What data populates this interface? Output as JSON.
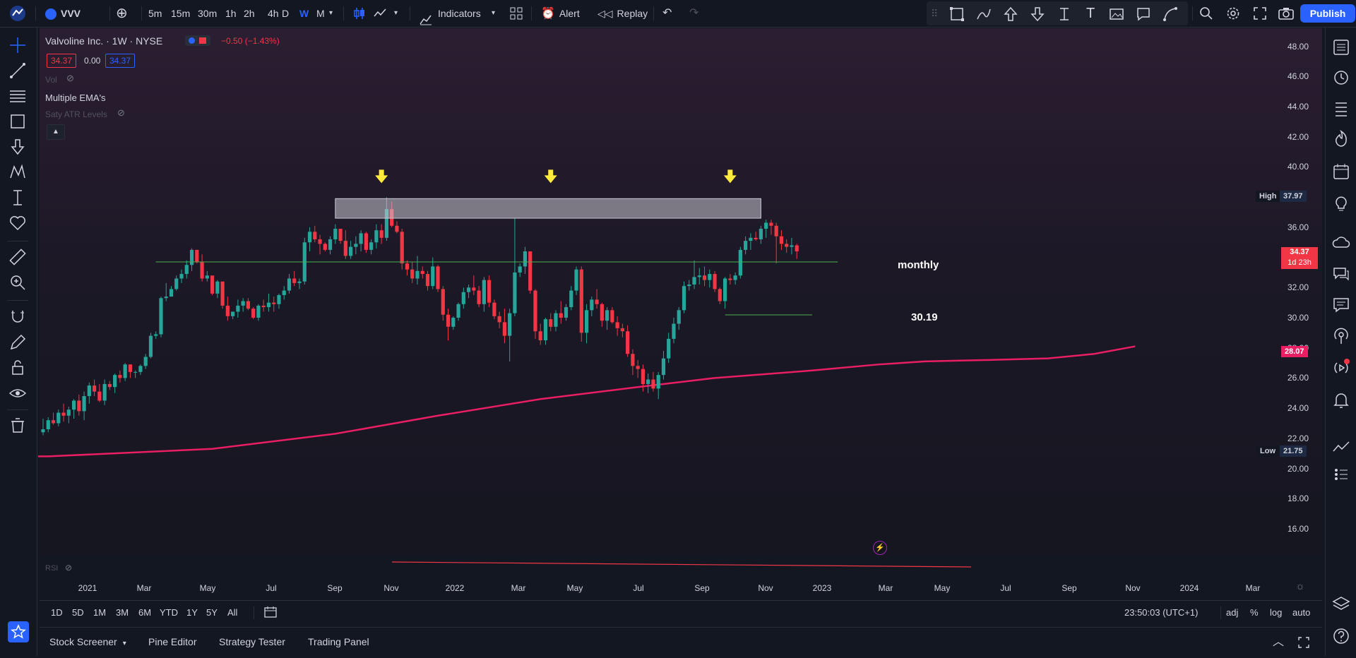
{
  "topbar": {
    "symbol": "VVV",
    "intervals": [
      "5m",
      "15m",
      "30m",
      "1h",
      "2h",
      "4h",
      "D",
      "W",
      "M"
    ],
    "active_interval": "W",
    "indicators_label": "Indicators",
    "alert_label": "Alert",
    "replay_label": "Replay",
    "publish_label": "Publish"
  },
  "legend": {
    "title": "Valvoline Inc. · 1W · NYSE",
    "change": "−0.50 (−1.43%)",
    "bid": "34.37",
    "spread": "0.00",
    "ask": "34.37",
    "vol_label": "Vol",
    "ema_label": "Multiple EMA's",
    "atr_label": "Saty ATR Levels",
    "rsi_label": "RSI"
  },
  "annotations": {
    "monthly_label": "monthly",
    "level_label": "30.19"
  },
  "price_axis": {
    "ticks": [
      "48.00",
      "46.00",
      "44.00",
      "42.00",
      "40.00",
      "36.00",
      "34.00",
      "32.00",
      "30.00",
      "28.00",
      "26.00",
      "24.00",
      "22.00",
      "20.00",
      "18.00",
      "16.00"
    ],
    "high_label": "High",
    "high_value": "37.97",
    "low_label": "Low",
    "low_value": "21.75",
    "last_price": "34.37",
    "countdown": "1d 23h",
    "ema_value": "28.07"
  },
  "time_axis": {
    "labels": [
      "2021",
      "Mar",
      "May",
      "Jul",
      "Sep",
      "Nov",
      "2022",
      "Mar",
      "May",
      "Jul",
      "Sep",
      "Nov",
      "2023",
      "Mar",
      "May",
      "Jul",
      "Sep",
      "Nov",
      "2024",
      "Mar"
    ]
  },
  "range_bar": {
    "ranges": [
      "1D",
      "5D",
      "1M",
      "3M",
      "6M",
      "YTD",
      "1Y",
      "5Y",
      "All"
    ],
    "clock": "23:50:03 (UTC+1)",
    "adj": "adj",
    "pct": "%",
    "log": "log",
    "auto": "auto"
  },
  "bottom_panel": {
    "tabs": [
      "Stock Screener",
      "Pine Editor",
      "Strategy Tester",
      "Trading Panel"
    ]
  },
  "colors": {
    "up": "#26a69a",
    "down": "#f23645",
    "ema": "#e91e63",
    "accent": "#2962ff",
    "arrow": "#ffeb3b",
    "hline": "#4caf50"
  },
  "chart_data": {
    "type": "candlestick",
    "xlabels": [
      "2021",
      "Mar",
      "May",
      "Jul",
      "Sep",
      "Nov",
      "2022",
      "Mar",
      "May",
      "Jul",
      "Sep",
      "Nov",
      "2023",
      "Mar",
      "May",
      "Jul",
      "Sep",
      "Nov",
      "2024",
      "Mar"
    ],
    "ylim": [
      15.2,
      48.5
    ],
    "log_scale": false,
    "ohlc": [
      [
        22.4,
        23.3,
        22.2,
        22.6
      ],
      [
        22.6,
        23.4,
        22.4,
        23.2
      ],
      [
        23.2,
        23.7,
        22.9,
        23.0
      ],
      [
        23.0,
        23.9,
        22.8,
        23.7
      ],
      [
        23.7,
        24.3,
        23.1,
        23.5
      ],
      [
        23.5,
        24.1,
        23.0,
        23.9
      ],
      [
        23.9,
        24.6,
        23.3,
        24.5
      ],
      [
        24.5,
        24.9,
        23.5,
        23.8
      ],
      [
        23.8,
        25.1,
        23.2,
        24.8
      ],
      [
        24.8,
        25.7,
        24.3,
        25.5
      ],
      [
        25.5,
        25.9,
        24.8,
        25.1
      ],
      [
        25.1,
        25.6,
        24.4,
        24.5
      ],
      [
        24.5,
        25.9,
        24.2,
        25.6
      ],
      [
        25.6,
        25.8,
        25.2,
        25.4
      ],
      [
        25.4,
        26.3,
        25.0,
        26.2
      ],
      [
        26.2,
        26.5,
        25.7,
        26.0
      ],
      [
        26.0,
        27.0,
        25.8,
        26.9
      ],
      [
        26.9,
        26.9,
        26.0,
        26.4
      ],
      [
        26.4,
        26.5,
        26.0,
        26.4
      ],
      [
        26.4,
        26.9,
        26.2,
        26.8
      ],
      [
        26.8,
        27.6,
        26.6,
        27.4
      ],
      [
        27.4,
        29.0,
        27.3,
        28.8
      ],
      [
        28.8,
        29.1,
        28.6,
        28.9
      ],
      [
        28.9,
        31.4,
        28.7,
        31.3
      ],
      [
        31.3,
        32.3,
        31.1,
        31.4
      ],
      [
        31.4,
        32.1,
        31.4,
        31.9
      ],
      [
        31.9,
        32.8,
        31.8,
        32.6
      ],
      [
        32.6,
        33.2,
        32.3,
        32.9
      ],
      [
        32.9,
        33.8,
        32.6,
        33.5
      ],
      [
        33.5,
        34.6,
        33.1,
        34.5
      ],
      [
        34.5,
        34.5,
        33.6,
        33.7
      ],
      [
        33.7,
        34.2,
        32.4,
        32.6
      ],
      [
        32.6,
        33.1,
        32.4,
        32.8
      ],
      [
        32.8,
        32.8,
        31.5,
        31.6
      ],
      [
        31.6,
        32.5,
        31.3,
        32.4
      ],
      [
        32.4,
        32.4,
        30.6,
        30.8
      ],
      [
        30.8,
        31.4,
        29.8,
        30.1
      ],
      [
        30.1,
        30.4,
        29.9,
        30.4
      ],
      [
        30.4,
        31.2,
        30.0,
        30.8
      ],
      [
        30.8,
        31.3,
        30.4,
        31.1
      ],
      [
        31.1,
        31.3,
        30.5,
        30.6
      ],
      [
        30.6,
        30.7,
        29.9,
        30.0
      ],
      [
        30.0,
        30.9,
        29.8,
        30.8
      ],
      [
        30.8,
        31.2,
        30.4,
        30.7
      ],
      [
        30.7,
        31.6,
        30.4,
        31.0
      ],
      [
        31.0,
        31.4,
        30.4,
        30.9
      ],
      [
        30.9,
        31.6,
        30.6,
        31.5
      ],
      [
        31.5,
        32.1,
        31.2,
        31.8
      ],
      [
        31.8,
        32.9,
        31.6,
        32.6
      ],
      [
        32.6,
        33.1,
        32.1,
        32.3
      ],
      [
        32.3,
        32.6,
        31.9,
        32.4
      ],
      [
        32.4,
        35.3,
        32.2,
        35.0
      ],
      [
        35.0,
        36.0,
        34.4,
        35.7
      ],
      [
        35.7,
        36.1,
        35.0,
        35.2
      ],
      [
        35.2,
        35.5,
        34.2,
        34.9
      ],
      [
        34.9,
        35.0,
        34.4,
        34.5
      ],
      [
        34.5,
        35.4,
        34.2,
        35.2
      ],
      [
        35.2,
        36.2,
        34.9,
        35.9
      ],
      [
        35.9,
        35.9,
        34.9,
        35.1
      ],
      [
        35.1,
        35.8,
        33.9,
        34.1
      ],
      [
        34.1,
        35.1,
        33.9,
        34.7
      ],
      [
        34.7,
        35.4,
        34.2,
        34.9
      ],
      [
        34.9,
        35.8,
        34.4,
        35.6
      ],
      [
        35.6,
        35.7,
        34.3,
        34.5
      ],
      [
        34.5,
        35.2,
        34.2,
        35.0
      ],
      [
        35.0,
        36.2,
        34.6,
        35.8
      ],
      [
        35.8,
        36.2,
        34.9,
        35.3
      ],
      [
        35.3,
        38.0,
        35.1,
        37.2
      ],
      [
        37.2,
        37.7,
        36.0,
        36.1
      ],
      [
        36.1,
        36.4,
        35.6,
        35.7
      ],
      [
        35.7,
        35.9,
        33.2,
        33.6
      ],
      [
        33.6,
        33.8,
        32.8,
        33.2
      ],
      [
        33.2,
        33.7,
        32.3,
        32.6
      ],
      [
        32.6,
        34.1,
        32.2,
        33.1
      ],
      [
        33.1,
        33.4,
        32.6,
        32.9
      ],
      [
        32.9,
        33.1,
        31.8,
        32.1
      ],
      [
        32.1,
        34.0,
        31.9,
        33.4
      ],
      [
        33.4,
        33.5,
        31.7,
        31.9
      ],
      [
        31.9,
        32.1,
        29.8,
        30.2
      ],
      [
        30.2,
        30.6,
        28.5,
        29.4
      ],
      [
        29.4,
        30.1,
        29.2,
        30.0
      ],
      [
        30.0,
        31.0,
        29.8,
        30.9
      ],
      [
        30.9,
        32.0,
        30.6,
        31.7
      ],
      [
        31.7,
        32.2,
        31.3,
        32.0
      ],
      [
        32.0,
        32.8,
        31.5,
        31.8
      ],
      [
        31.8,
        32.1,
        30.7,
        30.9
      ],
      [
        30.9,
        32.7,
        30.4,
        32.5
      ],
      [
        32.5,
        32.8,
        30.7,
        31.0
      ],
      [
        31.0,
        31.2,
        29.9,
        30.1
      ],
      [
        30.1,
        30.4,
        29.3,
        29.7
      ],
      [
        29.7,
        30.6,
        28.3,
        28.8
      ],
      [
        28.8,
        30.6,
        27.1,
        30.3
      ],
      [
        30.3,
        36.6,
        30.1,
        33.0
      ],
      [
        33.0,
        33.6,
        32.7,
        33.4
      ],
      [
        33.4,
        34.7,
        32.9,
        34.4
      ],
      [
        34.4,
        34.4,
        31.6,
        31.8
      ],
      [
        31.8,
        31.9,
        28.6,
        29.1
      ],
      [
        29.1,
        29.6,
        28.2,
        28.5
      ],
      [
        28.5,
        30.0,
        28.2,
        29.9
      ],
      [
        29.9,
        30.3,
        29.1,
        29.4
      ],
      [
        29.4,
        30.5,
        29.1,
        30.3
      ],
      [
        30.3,
        31.1,
        29.6,
        30.0
      ],
      [
        30.0,
        30.9,
        29.8,
        30.7
      ],
      [
        30.7,
        32.1,
        30.5,
        31.8
      ],
      [
        31.8,
        33.4,
        31.5,
        33.2
      ],
      [
        33.2,
        33.4,
        28.4,
        29.0
      ],
      [
        29.0,
        30.9,
        28.3,
        30.5
      ],
      [
        30.5,
        31.4,
        30.1,
        31.2
      ],
      [
        31.2,
        31.9,
        30.6,
        30.9
      ],
      [
        30.9,
        31.0,
        29.4,
        29.8
      ],
      [
        29.8,
        30.7,
        29.2,
        30.5
      ],
      [
        30.5,
        30.7,
        29.6,
        29.7
      ],
      [
        29.7,
        30.1,
        28.8,
        29.3
      ],
      [
        29.3,
        29.6,
        28.7,
        29.1
      ],
      [
        29.1,
        29.5,
        27.4,
        27.6
      ],
      [
        27.6,
        27.9,
        26.2,
        26.8
      ],
      [
        26.8,
        27.2,
        26.0,
        26.6
      ],
      [
        26.6,
        26.9,
        25.1,
        25.6
      ],
      [
        25.6,
        26.3,
        25.0,
        25.9
      ],
      [
        25.9,
        26.4,
        25.1,
        25.3
      ],
      [
        25.3,
        26.4,
        24.6,
        26.2
      ],
      [
        26.2,
        27.8,
        25.9,
        27.3
      ],
      [
        27.3,
        29.0,
        27.0,
        28.6
      ],
      [
        28.6,
        30.0,
        28.3,
        29.6
      ],
      [
        29.6,
        30.7,
        29.2,
        30.5
      ],
      [
        30.5,
        32.4,
        30.3,
        32.1
      ],
      [
        32.1,
        32.5,
        31.8,
        32.2
      ],
      [
        32.2,
        33.8,
        31.9,
        32.7
      ],
      [
        32.7,
        33.3,
        32.2,
        32.8
      ],
      [
        32.8,
        33.4,
        32.1,
        32.5
      ],
      [
        32.5,
        33.2,
        32.0,
        32.9
      ],
      [
        32.9,
        33.1,
        31.7,
        31.9
      ],
      [
        31.9,
        32.0,
        30.9,
        31.1
      ],
      [
        31.1,
        32.7,
        30.6,
        32.6
      ],
      [
        32.6,
        32.9,
        32.2,
        32.5
      ],
      [
        32.5,
        33.0,
        32.2,
        32.8
      ],
      [
        32.8,
        34.7,
        32.6,
        34.5
      ],
      [
        34.5,
        35.4,
        34.2,
        35.1
      ],
      [
        35.1,
        35.6,
        34.5,
        35.3
      ],
      [
        35.3,
        35.7,
        35.1,
        35.2
      ],
      [
        35.2,
        36.1,
        34.9,
        35.9
      ],
      [
        35.9,
        36.5,
        35.3,
        36.3
      ],
      [
        36.3,
        36.5,
        35.5,
        36.1
      ],
      [
        36.1,
        36.3,
        33.6,
        35.4
      ],
      [
        35.4,
        35.8,
        34.5,
        34.9
      ],
      [
        34.9,
        35.2,
        34.3,
        34.7
      ],
      [
        34.7,
        35.3,
        34.2,
        34.8
      ],
      [
        34.8,
        34.9,
        33.9,
        34.4
      ]
    ],
    "ema": [
      [
        20.8,
        1
      ],
      [
        21.3,
        33
      ],
      [
        22.3,
        57
      ],
      [
        23.5,
        77
      ],
      [
        24.6,
        97
      ],
      [
        25.4,
        116
      ],
      [
        26.0,
        131
      ],
      [
        26.5,
        150
      ],
      [
        26.9,
        163
      ],
      [
        27.1,
        172
      ],
      [
        27.2,
        185
      ],
      [
        27.3,
        196
      ],
      [
        27.6,
        205
      ],
      [
        28.1,
        213
      ]
    ],
    "zone": {
      "start_bar": 57,
      "end_bar": 140,
      "low": 36.6,
      "high": 37.9
    },
    "arrows": [
      {
        "bar": 66,
        "price": 39.3
      },
      {
        "bar": 99,
        "price": 39.3
      },
      {
        "bar": 134,
        "price": 39.3
      }
    ],
    "hlines": [
      {
        "price": 33.7,
        "start_bar": 22,
        "end_bar": 155,
        "label": "monthly"
      },
      {
        "price": 30.19,
        "start_bar": 133,
        "end_bar": 150,
        "label": "30.19"
      }
    ]
  }
}
